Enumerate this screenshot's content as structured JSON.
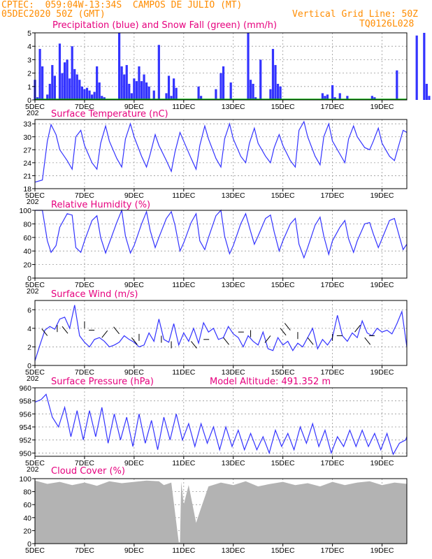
{
  "header": {
    "line1": "CPTEC:  059:04W-13:34S  CAMPOS DE JULIO (MT)",
    "date": "05DEC2020 50Z (GMT)",
    "grid": "Vertical Grid Line: 50Z",
    "code": "TQ0126L028"
  },
  "colors": {
    "header": "#ff8c00",
    "title": "#e6007e",
    "line": "#3333ff",
    "precip": "#3333ff",
    "snow": "#00aa00",
    "cloud": "#b3b3b3",
    "grid": "#999999"
  },
  "chart_data": [
    {
      "type": "bar",
      "title": "Precipitation (blue) and Snow Fall (green) (mm/h)",
      "x_tick_labels": [
        "5DEC",
        "7DEC",
        "9DEC",
        "11DEC",
        "13DEC",
        "15DEC",
        "17DEC",
        "19DEC"
      ],
      "x_corner_label": "202",
      "ylim": [
        0,
        5
      ],
      "y_ticks": [
        0,
        1,
        2,
        3,
        4,
        5
      ],
      "x_days": [
        0,
        0.1,
        0.2,
        0.3,
        0.5,
        0.6,
        0.7,
        0.8,
        1.0,
        1.1,
        1.2,
        1.3,
        1.4,
        1.5,
        1.6,
        1.7,
        1.8,
        1.9,
        2.0,
        2.1,
        2.2,
        2.3,
        2.4,
        2.5,
        2.6,
        2.7,
        2.8,
        3.4,
        3.5,
        3.6,
        3.7,
        3.8,
        3.9,
        4.0,
        4.1,
        4.2,
        4.3,
        4.4,
        4.5,
        4.6,
        4.8,
        5.0,
        5.3,
        5.4,
        5.5,
        5.6,
        5.7,
        6.6,
        6.7,
        7.3,
        7.5,
        7.6,
        7.9,
        8.6,
        8.7,
        8.8,
        8.9,
        9.1,
        9.5,
        9.6,
        9.7,
        9.8,
        9.9,
        11.6,
        11.7,
        11.8,
        12.0,
        12.1,
        12.3,
        12.6,
        13.6,
        13.7,
        14.6,
        15.4,
        15.7,
        15.8,
        15.9,
        16.1,
        16.3
      ],
      "precip": [
        1.5,
        0.2,
        3.8,
        2.5,
        0.4,
        1.2,
        2.6,
        1.8,
        4.2,
        2.0,
        2.8,
        3.0,
        1.6,
        4.0,
        2.3,
        1.9,
        1.5,
        1.0,
        0.8,
        0.9,
        0.7,
        0.4,
        0.6,
        2.5,
        1.3,
        0.3,
        0.2,
        5.0,
        2.5,
        1.9,
        2.6,
        1.2,
        0.5,
        1.6,
        1.4,
        2.5,
        1.4,
        1.9,
        1.3,
        1.0,
        0.7,
        4.1,
        0.5,
        1.8,
        0.3,
        1.6,
        0.9,
        1.0,
        0.3,
        0.8,
        2.0,
        2.5,
        1.3,
        5.0,
        1.5,
        1.2,
        0.2,
        3.0,
        0.8,
        3.8,
        2.6,
        1.2,
        1.0,
        0.5,
        0.3,
        0.4,
        1.1,
        0.2,
        0.5,
        0.3,
        0.3,
        0.2,
        2.2,
        4.8,
        5.0,
        1.2,
        0.3,
        5.0,
        1.0
      ],
      "snow": "all 0"
    },
    {
      "type": "line",
      "title": "Surface Temperature (nC)",
      "ylim": [
        18,
        34
      ],
      "y_ticks": [
        18,
        21,
        24,
        27,
        30,
        33
      ],
      "x_tick_labels": [
        "5DEC",
        "7DEC",
        "9DEC",
        "11DEC",
        "13DEC",
        "15DEC",
        "17DEC",
        "19DEC"
      ],
      "x_corner_label": "202",
      "x_days": [
        0,
        0.3,
        0.5,
        0.65,
        0.85,
        1.0,
        1.3,
        1.5,
        1.65,
        1.85,
        2.0,
        2.3,
        2.5,
        2.65,
        2.85,
        3.0,
        3.3,
        3.5,
        3.65,
        3.85,
        4.0,
        4.3,
        4.5,
        4.65,
        4.85,
        5.0,
        5.3,
        5.5,
        5.65,
        5.85,
        6.0,
        6.3,
        6.5,
        6.65,
        6.85,
        7.0,
        7.3,
        7.5,
        7.65,
        7.85,
        8.0,
        8.3,
        8.5,
        8.65,
        8.85,
        9.0,
        9.3,
        9.5,
        9.65,
        9.85,
        10.0,
        10.3,
        10.5,
        10.65,
        10.85,
        11.0,
        11.3,
        11.5,
        11.65,
        11.85,
        12.0,
        12.3,
        12.5,
        12.65,
        12.85,
        13.0,
        13.3,
        13.5,
        13.65,
        13.85,
        14.0,
        14.3,
        14.5,
        14.65,
        14.85,
        15.0
      ],
      "values": [
        19.5,
        20.0,
        29.0,
        32.8,
        30.5,
        27.0,
        24.5,
        22.5,
        30.0,
        31.5,
        28.0,
        24.0,
        22.5,
        28.5,
        32.5,
        29.0,
        25.0,
        23.0,
        29.5,
        33.0,
        30.0,
        25.5,
        23.0,
        26.0,
        30.5,
        28.0,
        24.5,
        22.0,
        26.5,
        31.0,
        29.0,
        25.0,
        22.5,
        28.0,
        32.5,
        29.5,
        25.0,
        23.0,
        29.5,
        33.0,
        29.5,
        25.5,
        24.0,
        28.5,
        32.0,
        28.5,
        25.5,
        24.0,
        27.5,
        30.5,
        28.0,
        24.5,
        23.0,
        31.5,
        33.5,
        30.0,
        25.5,
        23.5,
        30.0,
        33.0,
        29.0,
        26.0,
        24.0,
        29.5,
        32.5,
        30.0,
        27.5,
        27.0,
        29.0,
        32.0,
        28.5,
        25.5,
        24.5,
        27.5,
        31.5,
        31.0
      ]
    },
    {
      "type": "line",
      "title": "Relative Humidity (%)",
      "ylim": [
        0,
        100
      ],
      "y_ticks": [
        0,
        20,
        40,
        60,
        80,
        100
      ],
      "x_tick_labels": [
        "5DEC",
        "7DEC",
        "9DEC",
        "11DEC",
        "13DEC",
        "15DEC",
        "17DEC",
        "19DEC"
      ],
      "x_corner_label": "202",
      "x_days": [
        0,
        0.3,
        0.5,
        0.65,
        0.85,
        1.0,
        1.3,
        1.5,
        1.65,
        1.85,
        2.0,
        2.3,
        2.5,
        2.65,
        2.85,
        3.0,
        3.3,
        3.5,
        3.65,
        3.85,
        4.0,
        4.3,
        4.5,
        4.65,
        4.85,
        5.0,
        5.3,
        5.5,
        5.65,
        5.85,
        6.0,
        6.3,
        6.5,
        6.65,
        6.85,
        7.0,
        7.3,
        7.5,
        7.65,
        7.85,
        8.0,
        8.3,
        8.5,
        8.65,
        8.85,
        9.0,
        9.3,
        9.5,
        9.65,
        9.85,
        10.0,
        10.3,
        10.5,
        10.65,
        10.85,
        11.0,
        11.3,
        11.5,
        11.65,
        11.85,
        12.0,
        12.3,
        12.5,
        12.65,
        12.85,
        13.0,
        13.3,
        13.5,
        13.65,
        13.85,
        14.0,
        14.3,
        14.5,
        14.65,
        14.85,
        15.0
      ],
      "values": [
        100,
        100,
        55,
        38,
        48,
        75,
        95,
        93,
        45,
        38,
        55,
        85,
        92,
        60,
        37,
        52,
        82,
        100,
        62,
        37,
        48,
        80,
        98,
        70,
        45,
        60,
        88,
        98,
        78,
        40,
        52,
        82,
        95,
        55,
        42,
        60,
        92,
        100,
        62,
        36,
        48,
        80,
        95,
        75,
        50,
        62,
        88,
        93,
        68,
        40,
        55,
        80,
        88,
        50,
        30,
        45,
        78,
        90,
        62,
        35,
        55,
        75,
        85,
        58,
        38,
        55,
        80,
        82,
        65,
        45,
        58,
        85,
        88,
        68,
        42,
        50
      ]
    },
    {
      "type": "line",
      "title": "Surface Wind (m/s)",
      "ylim": [
        0,
        7
      ],
      "y_ticks": [
        0,
        2,
        4,
        6
      ],
      "x_tick_labels": [
        "5DEC",
        "7DEC",
        "9DEC",
        "11DEC",
        "13DEC",
        "15DEC",
        "17DEC",
        "19DEC"
      ],
      "x_corner_label": "202",
      "x_days": [
        0,
        0.2,
        0.4,
        0.6,
        0.8,
        1.0,
        1.2,
        1.4,
        1.6,
        1.8,
        2.0,
        2.2,
        2.4,
        2.6,
        2.8,
        3.0,
        3.2,
        3.4,
        3.6,
        3.8,
        4.0,
        4.2,
        4.4,
        4.6,
        4.8,
        5.0,
        5.2,
        5.4,
        5.6,
        5.8,
        6.0,
        6.2,
        6.4,
        6.6,
        6.8,
        7.0,
        7.2,
        7.4,
        7.6,
        7.8,
        8.0,
        8.2,
        8.4,
        8.6,
        8.8,
        9.0,
        9.2,
        9.4,
        9.6,
        9.8,
        10.0,
        10.2,
        10.4,
        10.6,
        10.8,
        11.0,
        11.2,
        11.4,
        11.6,
        11.8,
        12.0,
        12.2,
        12.4,
        12.6,
        12.8,
        13.0,
        13.2,
        13.4,
        13.6,
        13.8,
        14.0,
        14.2,
        14.4,
        14.6,
        14.8,
        15.0
      ],
      "values": [
        0.5,
        2.2,
        3.8,
        4.2,
        3.9,
        5.0,
        5.2,
        4.0,
        6.5,
        3.2,
        2.5,
        2.0,
        2.8,
        3.0,
        2.6,
        2.0,
        2.2,
        2.5,
        3.2,
        2.8,
        2.5,
        2.0,
        2.2,
        3.5,
        2.6,
        5.0,
        2.8,
        2.5,
        4.5,
        2.2,
        3.5,
        2.6,
        4.0,
        2.4,
        4.6,
        3.6,
        4.0,
        2.8,
        3.0,
        4.2,
        3.4,
        3.0,
        2.0,
        3.2,
        2.6,
        2.2,
        3.6,
        1.8,
        1.6,
        3.0,
        2.2,
        2.6,
        1.6,
        2.4,
        2.0,
        3.0,
        4.0,
        1.8,
        2.8,
        2.2,
        3.0,
        5.4,
        3.2,
        2.6,
        3.5,
        3.0,
        4.8,
        3.5,
        3.2,
        4.0,
        3.6,
        3.8,
        3.4,
        4.5,
        5.8,
        2.0
      ]
    },
    {
      "type": "line",
      "title": "Surface Pressure (hPa)",
      "annotation": "Model Altitude: 491.352 m",
      "ylim": [
        949.5,
        960
      ],
      "y_ticks": [
        950,
        952,
        954,
        956,
        958,
        960
      ],
      "x_tick_labels": [
        "5DEC",
        "7DEC",
        "9DEC",
        "11DEC",
        "13DEC",
        "15DEC",
        "17DEC",
        "19DEC"
      ],
      "x_corner_label": "202",
      "x_days": [
        0,
        0.25,
        0.45,
        0.7,
        0.95,
        1.2,
        1.45,
        1.7,
        1.95,
        2.2,
        2.45,
        2.7,
        2.95,
        3.2,
        3.45,
        3.7,
        3.95,
        4.2,
        4.45,
        4.7,
        4.95,
        5.2,
        5.45,
        5.7,
        5.95,
        6.2,
        6.45,
        6.7,
        6.95,
        7.2,
        7.45,
        7.7,
        7.95,
        8.2,
        8.45,
        8.7,
        8.95,
        9.2,
        9.45,
        9.7,
        9.95,
        10.2,
        10.45,
        10.7,
        10.95,
        11.2,
        11.45,
        11.7,
        11.95,
        12.2,
        12.45,
        12.7,
        12.95,
        13.2,
        13.45,
        13.7,
        13.95,
        14.2,
        14.45,
        14.7,
        14.95,
        15.0
      ],
      "values": [
        957.8,
        958.2,
        959.0,
        955.5,
        954.0,
        957.0,
        952.5,
        956.5,
        952.0,
        956.5,
        952.5,
        957.0,
        951.5,
        956.0,
        952.0,
        955.5,
        951.0,
        956.0,
        951.5,
        955.0,
        950.5,
        955.5,
        952.0,
        956.0,
        952.0,
        954.5,
        951.0,
        954.5,
        951.5,
        954.0,
        950.5,
        954.0,
        951.0,
        953.5,
        950.5,
        953.0,
        950.5,
        952.5,
        950.0,
        953.5,
        951.0,
        953.0,
        950.5,
        954.0,
        951.5,
        954.5,
        951.0,
        953.5,
        950.0,
        952.5,
        951.0,
        953.5,
        951.0,
        953.5,
        951.0,
        953.0,
        950.5,
        953.0,
        949.8,
        951.5,
        952.0,
        952.5
      ]
    },
    {
      "type": "area",
      "title": "Cloud Cover (%)",
      "ylim": [
        0,
        100
      ],
      "y_ticks": [
        0,
        20,
        40,
        60,
        80,
        100
      ],
      "x_tick_labels": [
        "5DEC",
        "7DEC",
        "9DEC",
        "11DEC",
        "13DEC",
        "15DEC",
        "17DEC",
        "19DEC"
      ],
      "x_days": [
        0,
        0.5,
        1.0,
        1.5,
        2.0,
        2.5,
        3.0,
        3.5,
        4.0,
        4.5,
        5.0,
        5.2,
        5.5,
        5.8,
        5.85,
        5.9,
        6.0,
        6.2,
        6.5,
        6.7,
        7.0,
        7.5,
        8.0,
        8.5,
        9.0,
        9.5,
        10.0,
        10.5,
        11.0,
        11.5,
        12.0,
        12.5,
        13.0,
        13.5,
        14.0,
        14.5,
        15.0
      ],
      "values": [
        97,
        92,
        95,
        90,
        94,
        89,
        96,
        93,
        95,
        97,
        96,
        90,
        94,
        2,
        2,
        95,
        60,
        90,
        32,
        55,
        88,
        94,
        90,
        96,
        88,
        92,
        95,
        90,
        93,
        88,
        95,
        90,
        94,
        96,
        90,
        94,
        92
      ]
    }
  ]
}
